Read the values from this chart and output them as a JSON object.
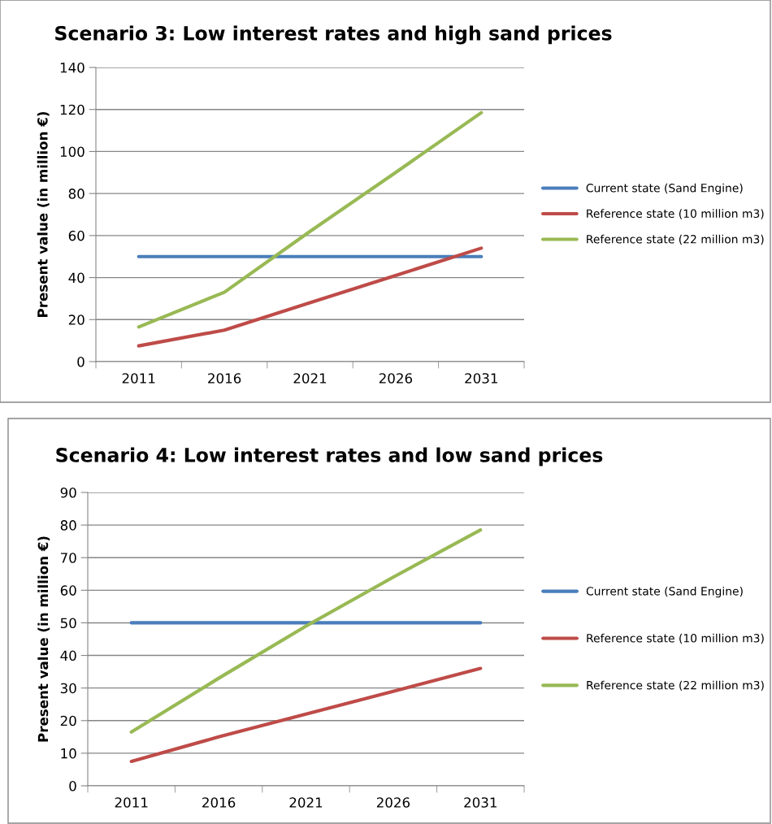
{
  "chart_data": [
    {
      "type": "line",
      "title": "Scenario 3: Low interest rates and high sand prices",
      "ylabel": "Present value (in million €)",
      "categories": [
        "2011",
        "2016",
        "2021",
        "2026",
        "2031"
      ],
      "series": [
        {
          "name": "Current state (Sand Engine)",
          "color": "#4a7ebb",
          "values": [
            50,
            50,
            50,
            50,
            50
          ]
        },
        {
          "name": "Reference state (10 million m3)",
          "color": "#be4b48",
          "values": [
            7.5,
            15,
            28,
            41,
            54
          ]
        },
        {
          "name": "Reference state (22 million m3)",
          "color": "#98b954",
          "values": [
            16.5,
            33,
            62,
            90,
            118.5
          ]
        }
      ],
      "ylim": [
        0,
        140
      ],
      "yticks": [
        0,
        20,
        40,
        60,
        80,
        100,
        120,
        140
      ],
      "grid": "y",
      "legend": "right"
    },
    {
      "type": "line",
      "title": "Scenario 4: Low interest rates and low sand prices",
      "ylabel": "Present value (in million €)",
      "categories": [
        "2011",
        "2016",
        "2021",
        "2026",
        "2031"
      ],
      "series": [
        {
          "name": "Current state (Sand Engine)",
          "color": "#4a7ebb",
          "values": [
            50,
            50,
            50,
            50,
            50
          ]
        },
        {
          "name": "Reference state (10 million m3)",
          "color": "#be4b48",
          "values": [
            7.5,
            15,
            22,
            29,
            36
          ]
        },
        {
          "name": "Reference state (22 million m3)",
          "color": "#98b954",
          "values": [
            16.5,
            33,
            49,
            64,
            78.5
          ]
        }
      ],
      "ylim": [
        0,
        90
      ],
      "yticks": [
        0,
        10,
        20,
        30,
        40,
        50,
        60,
        70,
        80,
        90
      ],
      "grid": "y",
      "legend": "right"
    }
  ]
}
